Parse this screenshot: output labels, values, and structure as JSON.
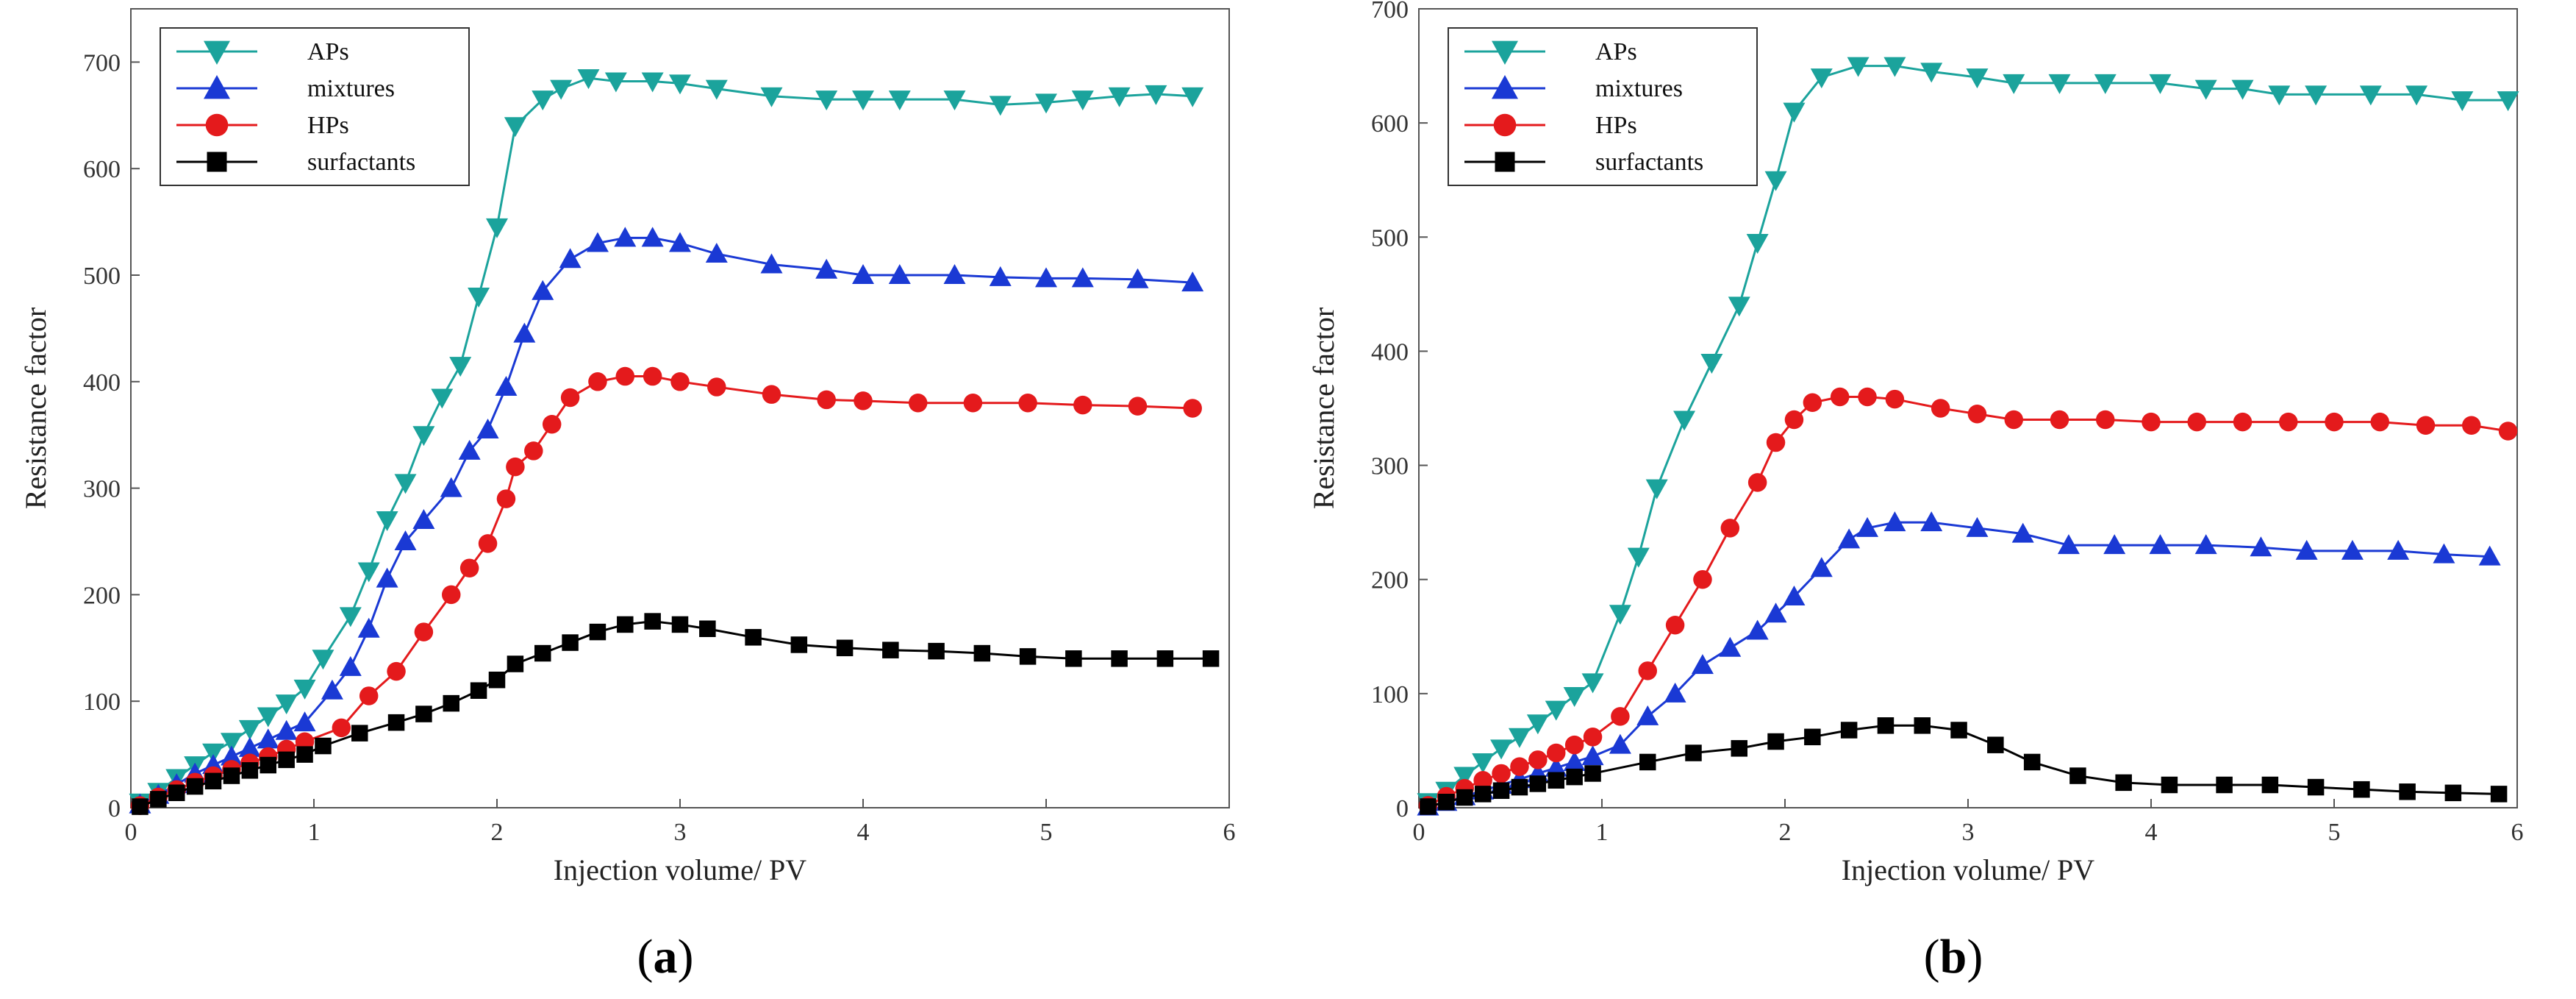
{
  "chart_data": [
    {
      "type": "line",
      "panel_label": [
        "(",
        "a",
        ")"
      ],
      "xlabel": "Injection volume/ PV",
      "ylabel": "Resistance factor",
      "xlim": [
        0,
        6
      ],
      "ylim": [
        0,
        750
      ],
      "xticks": [
        0,
        1,
        2,
        3,
        4,
        5,
        6
      ],
      "yticks": [
        0,
        100,
        200,
        300,
        400,
        500,
        600,
        700
      ],
      "legend_position": "top-left",
      "series": [
        {
          "name": "APs",
          "color": "#1ba39c",
          "marker": "triangle-down",
          "x": [
            0.05,
            0.15,
            0.25,
            0.35,
            0.45,
            0.55,
            0.65,
            0.75,
            0.85,
            0.95,
            1.05,
            1.2,
            1.3,
            1.4,
            1.5,
            1.6,
            1.7,
            1.8,
            1.9,
            2.0,
            2.1,
            2.25,
            2.35,
            2.5,
            2.65,
            2.85,
            3.0,
            3.2,
            3.5,
            3.8,
            4.0,
            4.2,
            4.5,
            4.75,
            5.0,
            5.2,
            5.4,
            5.6,
            5.8
          ],
          "y": [
            5,
            15,
            28,
            40,
            52,
            62,
            74,
            86,
            98,
            112,
            140,
            180,
            222,
            270,
            305,
            350,
            385,
            415,
            480,
            545,
            640,
            665,
            675,
            685,
            682,
            682,
            680,
            675,
            668,
            665,
            665,
            665,
            665,
            660,
            662,
            665,
            668,
            670,
            668
          ]
        },
        {
          "name": "mixtures",
          "color": "#1a39d4",
          "marker": "triangle-up",
          "x": [
            0.05,
            0.15,
            0.25,
            0.35,
            0.45,
            0.55,
            0.65,
            0.75,
            0.85,
            0.95,
            1.1,
            1.2,
            1.3,
            1.4,
            1.5,
            1.6,
            1.75,
            1.85,
            1.95,
            2.05,
            2.15,
            2.25,
            2.4,
            2.55,
            2.7,
            2.85,
            3.0,
            3.2,
            3.5,
            3.8,
            4.0,
            4.2,
            4.5,
            4.75,
            5.0,
            5.2,
            5.5,
            5.8
          ],
          "y": [
            3,
            12,
            22,
            32,
            40,
            48,
            56,
            64,
            72,
            80,
            110,
            132,
            168,
            215,
            250,
            270,
            300,
            335,
            355,
            395,
            445,
            485,
            515,
            530,
            535,
            535,
            530,
            520,
            510,
            505,
            500,
            500,
            500,
            498,
            497,
            497,
            496,
            493
          ]
        },
        {
          "name": "HPs",
          "color": "#e41a1c",
          "marker": "circle",
          "x": [
            0.05,
            0.15,
            0.25,
            0.35,
            0.45,
            0.55,
            0.65,
            0.75,
            0.85,
            0.95,
            1.15,
            1.3,
            1.45,
            1.6,
            1.75,
            1.85,
            1.95,
            2.05,
            2.1,
            2.2,
            2.3,
            2.4,
            2.55,
            2.7,
            2.85,
            3.0,
            3.2,
            3.5,
            3.8,
            4.0,
            4.3,
            4.6,
            4.9,
            5.2,
            5.5,
            5.8
          ],
          "y": [
            2,
            10,
            17,
            24,
            30,
            36,
            42,
            48,
            55,
            62,
            75,
            105,
            128,
            165,
            200,
            225,
            248,
            290,
            320,
            335,
            360,
            385,
            400,
            405,
            405,
            400,
            395,
            388,
            383,
            382,
            380,
            380,
            380,
            378,
            377,
            375
          ]
        },
        {
          "name": "surfactants",
          "color": "#000000",
          "marker": "square",
          "x": [
            0.05,
            0.15,
            0.25,
            0.35,
            0.45,
            0.55,
            0.65,
            0.75,
            0.85,
            0.95,
            1.05,
            1.25,
            1.45,
            1.6,
            1.75,
            1.9,
            2.0,
            2.1,
            2.25,
            2.4,
            2.55,
            2.7,
            2.85,
            3.0,
            3.15,
            3.4,
            3.65,
            3.9,
            4.15,
            4.4,
            4.65,
            4.9,
            5.15,
            5.4,
            5.65,
            5.9
          ],
          "y": [
            1,
            8,
            14,
            20,
            25,
            30,
            35,
            40,
            45,
            50,
            58,
            70,
            80,
            88,
            98,
            110,
            120,
            135,
            145,
            155,
            165,
            172,
            175,
            172,
            168,
            160,
            153,
            150,
            148,
            147,
            145,
            142,
            140,
            140,
            140,
            140
          ]
        }
      ]
    },
    {
      "type": "line",
      "panel_label": [
        "(",
        "b",
        ")"
      ],
      "xlabel": "Injection volume/ PV",
      "ylabel": "Resistance factor",
      "xlim": [
        0,
        6
      ],
      "ylim": [
        0,
        700
      ],
      "xticks": [
        0,
        1,
        2,
        3,
        4,
        5,
        6
      ],
      "yticks": [
        0,
        100,
        200,
        300,
        400,
        500,
        600,
        700
      ],
      "legend_position": "top-left",
      "series": [
        {
          "name": "APs",
          "color": "#1ba39c",
          "marker": "triangle-down",
          "x": [
            0.05,
            0.15,
            0.25,
            0.35,
            0.45,
            0.55,
            0.65,
            0.75,
            0.85,
            0.95,
            1.1,
            1.2,
            1.3,
            1.45,
            1.6,
            1.75,
            1.85,
            1.95,
            2.05,
            2.2,
            2.4,
            2.6,
            2.8,
            3.05,
            3.25,
            3.5,
            3.75,
            4.05,
            4.3,
            4.5,
            4.7,
            4.9,
            5.2,
            5.45,
            5.7,
            5.95
          ],
          "y": [
            5,
            15,
            28,
            40,
            52,
            62,
            74,
            86,
            98,
            110,
            170,
            220,
            280,
            340,
            390,
            440,
            495,
            550,
            610,
            640,
            650,
            650,
            645,
            640,
            635,
            635,
            635,
            635,
            630,
            630,
            625,
            625,
            625,
            625,
            620,
            620
          ]
        },
        {
          "name": "mixtures",
          "color": "#1a39d4",
          "marker": "triangle-up",
          "x": [
            0.05,
            0.15,
            0.25,
            0.35,
            0.45,
            0.55,
            0.65,
            0.75,
            0.85,
            0.95,
            1.1,
            1.25,
            1.4,
            1.55,
            1.7,
            1.85,
            1.95,
            2.05,
            2.2,
            2.35,
            2.45,
            2.6,
            2.8,
            3.05,
            3.3,
            3.55,
            3.8,
            4.05,
            4.3,
            4.6,
            4.85,
            5.1,
            5.35,
            5.6,
            5.85
          ],
          "y": [
            1,
            5,
            10,
            15,
            20,
            25,
            30,
            35,
            40,
            45,
            55,
            80,
            100,
            125,
            140,
            155,
            170,
            185,
            210,
            235,
            245,
            250,
            250,
            245,
            240,
            230,
            230,
            230,
            230,
            228,
            225,
            225,
            225,
            222,
            220
          ]
        },
        {
          "name": "HPs",
          "color": "#e41a1c",
          "marker": "circle",
          "x": [
            0.05,
            0.15,
            0.25,
            0.35,
            0.45,
            0.55,
            0.65,
            0.75,
            0.85,
            0.95,
            1.1,
            1.25,
            1.4,
            1.55,
            1.7,
            1.85,
            1.95,
            2.05,
            2.15,
            2.3,
            2.45,
            2.6,
            2.85,
            3.05,
            3.25,
            3.5,
            3.75,
            4.0,
            4.25,
            4.5,
            4.75,
            5.0,
            5.25,
            5.5,
            5.75,
            5.95
          ],
          "y": [
            2,
            10,
            17,
            24,
            30,
            36,
            42,
            48,
            55,
            62,
            80,
            120,
            160,
            200,
            245,
            285,
            320,
            340,
            355,
            360,
            360,
            358,
            350,
            345,
            340,
            340,
            340,
            338,
            338,
            338,
            338,
            338,
            338,
            335,
            335,
            330
          ]
        },
        {
          "name": "surfactants",
          "color": "#000000",
          "marker": "square",
          "x": [
            0.05,
            0.15,
            0.25,
            0.35,
            0.45,
            0.55,
            0.65,
            0.75,
            0.85,
            0.95,
            1.25,
            1.5,
            1.75,
            1.95,
            2.15,
            2.35,
            2.55,
            2.75,
            2.95,
            3.15,
            3.35,
            3.6,
            3.85,
            4.1,
            4.4,
            4.65,
            4.9,
            5.15,
            5.4,
            5.65,
            5.9
          ],
          "y": [
            1,
            5,
            9,
            12,
            15,
            18,
            21,
            24,
            27,
            30,
            40,
            48,
            52,
            58,
            62,
            68,
            72,
            72,
            68,
            55,
            40,
            28,
            22,
            20,
            20,
            20,
            18,
            16,
            14,
            13,
            12
          ]
        }
      ]
    }
  ]
}
